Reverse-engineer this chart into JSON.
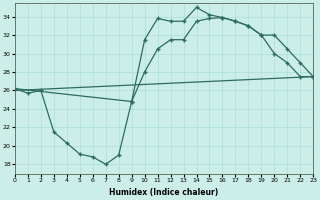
{
  "xlabel": "Humidex (Indice chaleur)",
  "bg_color": "#cceee8",
  "line_color": "#2e6b60",
  "grid_color": "#aaddda",
  "xlim": [
    0,
    23
  ],
  "ylim": [
    17,
    35.5
  ],
  "xticks": [
    0,
    1,
    2,
    3,
    4,
    5,
    6,
    7,
    8,
    9,
    10,
    11,
    12,
    13,
    14,
    15,
    16,
    17,
    18,
    19,
    20,
    21,
    22,
    23
  ],
  "yticks": [
    18,
    20,
    22,
    24,
    26,
    28,
    30,
    32,
    34
  ],
  "line1_x": [
    0,
    1,
    2,
    3,
    4,
    5,
    6,
    7,
    8,
    9,
    10,
    11,
    12,
    13,
    14,
    15,
    16,
    17,
    18,
    19,
    20,
    21,
    22,
    23
  ],
  "line1_y": [
    26.2,
    25.7,
    26.0,
    21.5,
    20.3,
    19.1,
    18.8,
    18.0,
    19.0,
    24.8,
    28.0,
    30.5,
    31.5,
    31.5,
    33.5,
    33.8,
    33.9,
    33.5,
    33.0,
    32.0,
    30.0,
    29.0,
    27.5,
    27.5
  ],
  "line2_x": [
    0,
    9,
    10,
    11,
    12,
    13,
    14,
    15,
    16,
    17,
    18,
    19,
    20,
    21,
    22,
    23
  ],
  "line2_y": [
    26.2,
    24.8,
    31.5,
    33.8,
    33.5,
    33.5,
    35.0,
    34.2,
    33.9,
    33.5,
    33.0,
    32.0,
    32.0,
    30.5,
    29.0,
    27.5
  ],
  "line3_x": [
    0,
    23
  ],
  "line3_y": [
    26.0,
    27.5
  ]
}
